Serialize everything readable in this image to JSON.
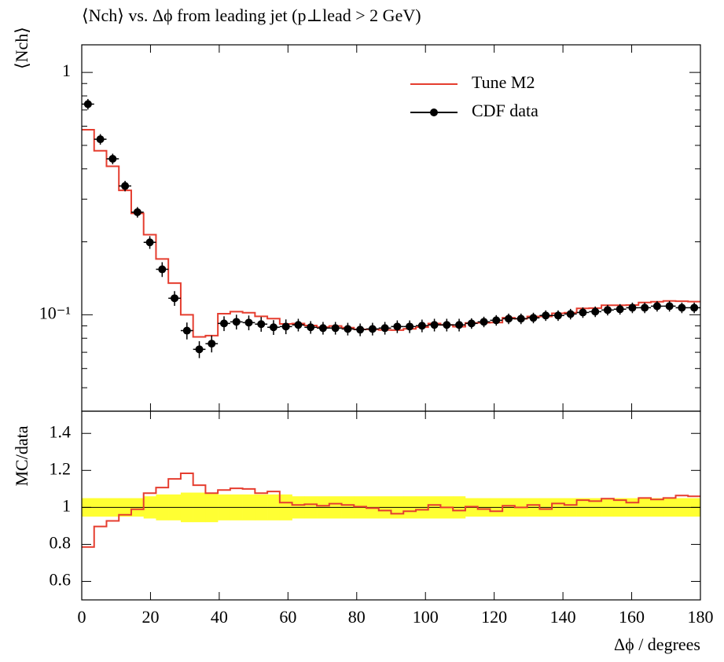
{
  "chart_data": {
    "type": "step",
    "title": "⟨Nch⟩ vs. Δϕ from leading jet (p⊥lead > 2 GeV)",
    "ylabel": "⟨Nch⟩",
    "xlabel": "Δϕ / degrees",
    "log_y": true,
    "xlim": [
      0,
      180
    ],
    "xticks": [
      0,
      20,
      40,
      60,
      80,
      100,
      120,
      140,
      160,
      180
    ],
    "ylim": [
      0.04,
      1.3
    ],
    "yticks": [
      {
        "value": 1,
        "label": "1"
      },
      {
        "value": 0.1,
        "label": "10⁻¹"
      }
    ],
    "yminorticks": [
      0.05,
      0.06,
      0.07,
      0.08,
      0.09,
      0.2,
      0.3,
      0.4,
      0.5,
      0.6,
      0.7,
      0.8,
      0.9
    ],
    "legend": "upper right",
    "bins": [
      0,
      3.6,
      7.2,
      10.8,
      14.4,
      18,
      21.6,
      25.2,
      28.8,
      32.4,
      36,
      39.6,
      43.2,
      46.8,
      50.4,
      54,
      57.6,
      61.2,
      64.8,
      68.4,
      72,
      75.6,
      79.2,
      82.8,
      86.4,
      90,
      93.6,
      97.2,
      100.8,
      104.4,
      108,
      111.6,
      115.2,
      118.8,
      122.4,
      126,
      129.6,
      133.2,
      136.8,
      140.4,
      144,
      147.6,
      151.2,
      154.8,
      158.4,
      162,
      165.6,
      169.2,
      172.8,
      176.4,
      180
    ],
    "x": [
      1.8,
      5.4,
      9,
      12.6,
      16.2,
      19.8,
      23.4,
      27,
      30.6,
      34.2,
      37.8,
      41.4,
      45,
      48.6,
      52.2,
      55.8,
      59.4,
      63,
      66.6,
      70.2,
      73.8,
      77.4,
      81,
      84.6,
      88.2,
      91.8,
      95.4,
      99,
      102.6,
      106.2,
      109.8,
      113.4,
      117,
      120.6,
      124.2,
      127.8,
      131.4,
      135,
      138.6,
      142.2,
      145.8,
      149.4,
      153,
      156.6,
      160.2,
      163.8,
      167.4,
      171,
      174.6,
      178.2
    ],
    "series": [
      {
        "name": "Tune M2",
        "color": "#e53d2f",
        "values": [
          0.58,
          0.475,
          0.41,
          0.326,
          0.262,
          0.214,
          0.17,
          0.135,
          0.1,
          0.081,
          0.082,
          0.101,
          0.103,
          0.102,
          0.0985,
          0.0964,
          0.0917,
          0.092,
          0.0903,
          0.0889,
          0.0899,
          0.0885,
          0.0871,
          0.0871,
          0.0866,
          0.0864,
          0.0875,
          0.0889,
          0.092,
          0.0908,
          0.0893,
          0.0925,
          0.0927,
          0.0929,
          0.0972,
          0.0963,
          0.0984,
          0.0984,
          0.1014,
          0.102,
          0.1062,
          0.1065,
          0.1095,
          0.1095,
          0.1097,
          0.1124,
          0.1132,
          0.114,
          0.1137,
          0.1133
        ]
      },
      {
        "name": "CDF data",
        "color": "#000000",
        "values": [
          0.74,
          0.53,
          0.44,
          0.34,
          0.265,
          0.199,
          0.154,
          0.117,
          0.086,
          0.072,
          0.076,
          0.0921,
          0.0935,
          0.0928,
          0.0915,
          0.0888,
          0.0894,
          0.0908,
          0.0888,
          0.0881,
          0.0881,
          0.0874,
          0.0868,
          0.0874,
          0.0881,
          0.0894,
          0.0894,
          0.0901,
          0.0908,
          0.0908,
          0.0908,
          0.0921,
          0.0935,
          0.0949,
          0.0963,
          0.0963,
          0.0971,
          0.0993,
          0.0993,
          0.1007,
          0.1022,
          0.103,
          0.1046,
          0.1054,
          0.1069,
          0.1069,
          0.1085,
          0.1085,
          0.1069,
          0.1069
        ]
      }
    ],
    "ratio": {
      "ylabel": "MC/data",
      "ylim": [
        0.5,
        1.52
      ],
      "yticks": [
        0.6,
        0.8,
        1,
        1.2,
        1.4
      ],
      "reference": 1,
      "band_color": "#ffff33",
      "values": [
        0.786,
        0.897,
        0.927,
        0.96,
        0.99,
        1.077,
        1.107,
        1.154,
        1.184,
        1.12,
        1.077,
        1.094,
        1.103,
        1.1,
        1.077,
        1.086,
        1.026,
        1.013,
        1.017,
        1.009,
        1.02,
        1.013,
        1.004,
        0.996,
        0.983,
        0.966,
        0.979,
        0.987,
        1.013,
        1.0,
        0.983,
        1.004,
        0.991,
        0.979,
        1.009,
        1.0,
        1.013,
        0.991,
        1.021,
        1.013,
        1.039,
        1.034,
        1.047,
        1.039,
        1.026,
        1.051,
        1.043,
        1.051,
        1.064,
        1.06
      ],
      "band": [
        0.05,
        0.05,
        0.05,
        0.05,
        0.05,
        0.06,
        0.07,
        0.07,
        0.08,
        0.08,
        0.08,
        0.07,
        0.07,
        0.07,
        0.07,
        0.07,
        0.07,
        0.06,
        0.06,
        0.06,
        0.06,
        0.06,
        0.06,
        0.06,
        0.06,
        0.06,
        0.06,
        0.06,
        0.06,
        0.06,
        0.06,
        0.05,
        0.05,
        0.05,
        0.05,
        0.05,
        0.05,
        0.05,
        0.05,
        0.05,
        0.05,
        0.05,
        0.05,
        0.05,
        0.05,
        0.05,
        0.05,
        0.05,
        0.05,
        0.05
      ]
    }
  }
}
